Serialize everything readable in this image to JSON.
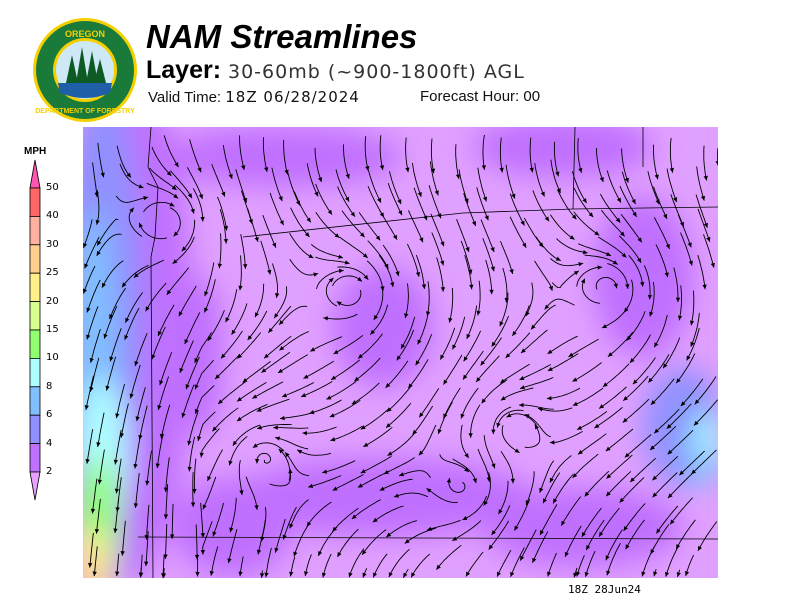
{
  "header": {
    "title": "NAM Streamlines",
    "layer_label": "Layer:",
    "layer_value": "30-60mb (~900-1800ft) AGL",
    "valid_label": "Valid Time:",
    "valid_value": "18Z 06/28/2024",
    "forecast_label": "Forecast Hour:",
    "forecast_value": "00"
  },
  "logo": {
    "text": "OREGON DEPARTMENT OF FORESTRY",
    "colors": {
      "ring": "#1a7a3a",
      "text": "#f5d000"
    }
  },
  "legend": {
    "unit": "MPH",
    "ticks": [
      "50",
      "40",
      "30",
      "25",
      "20",
      "15",
      "10",
      "8",
      "6",
      "4",
      "2"
    ],
    "bands": [
      {
        "range": "above 50",
        "color": "#ff55b0"
      },
      {
        "range": "40-50",
        "color": "#ff6666"
      },
      {
        "range": "30-40",
        "color": "#ffb0a0"
      },
      {
        "range": "25-30",
        "color": "#ffd090"
      },
      {
        "range": "20-25",
        "color": "#fff08a"
      },
      {
        "range": "15-20",
        "color": "#d8ff90"
      },
      {
        "range": "10-15",
        "color": "#90ff70"
      },
      {
        "range": "8-10",
        "color": "#b0ffff"
      },
      {
        "range": "6-8",
        "color": "#80c0ff"
      },
      {
        "range": "4-6",
        "color": "#9090ff"
      },
      {
        "range": "2-4",
        "color": "#c070ff"
      },
      {
        "range": "below 2",
        "color": "#e8a0ff"
      }
    ]
  },
  "map": {
    "timestamp": "18Z 28Jun24"
  }
}
